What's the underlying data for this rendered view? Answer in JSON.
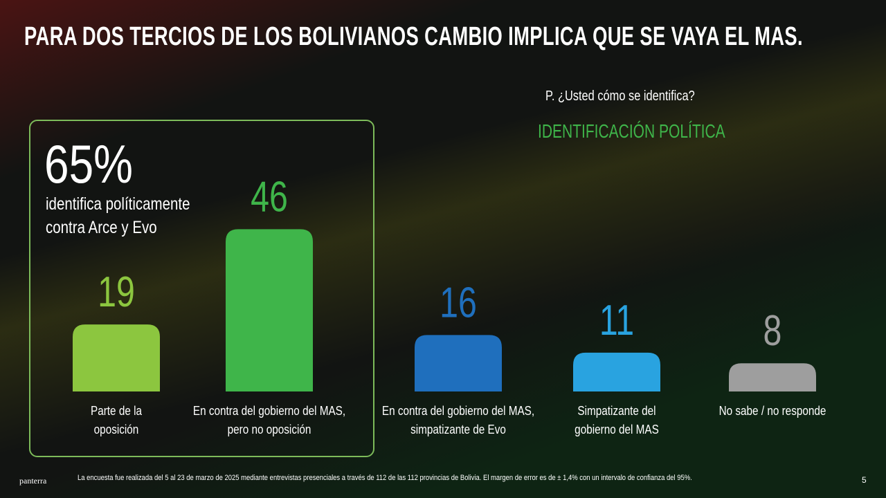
{
  "title": "PARA DOS TERCIOS DE LOS BOLIVIANOS CAMBIO IMPLICA QUE SE VAYA EL MAS.",
  "question": "P. ¿Usted cómo se identifica?",
  "callout": {
    "figure": "65%",
    "text": "identifica políticamente\ncontra Arce y Evo"
  },
  "chart_data": {
    "type": "bar",
    "title": "IDENTIFICACIÓN POLÍTICA",
    "categories": [
      "Parte de la\noposición",
      "En contra del gobierno del MAS,\npero no oposición",
      "En contra del gobierno del MAS,\nsimpatizante de Evo",
      "Simpatizante del\ngobierno del MAS",
      "No sabe / no responde"
    ],
    "values": [
      19,
      46,
      16,
      11,
      8
    ],
    "colors": [
      "#8cc63f",
      "#3fb54a",
      "#1f6fbd",
      "#29a3e0",
      "#9e9e9e"
    ]
  },
  "footer": {
    "brand": "panterra",
    "note": "La encuesta fue realizada del 5 al 23 de marzo de 2025 mediante entrevistas presenciales a través de 112 de las 112 provincias de Bolivia. El margen de error es de ± 1,4% con un intervalo de confianza del 95%.",
    "page": "5"
  }
}
